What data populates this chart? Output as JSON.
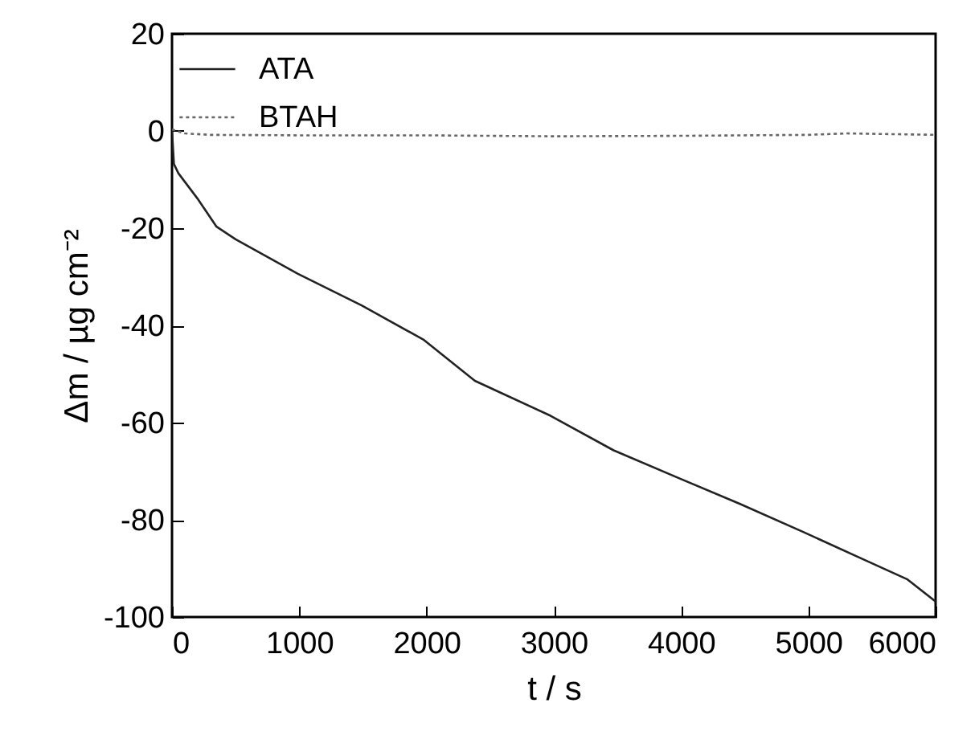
{
  "chart_data": {
    "type": "line",
    "xlabel": "t / s",
    "ylabel": "Δm / µg cm⁻²",
    "xlim": [
      0,
      6000
    ],
    "ylim": [
      -100,
      20
    ],
    "xticks": [
      0,
      1000,
      2000,
      3000,
      4000,
      5000,
      6000
    ],
    "yticks": [
      -100,
      -80,
      -60,
      -40,
      -20,
      0,
      20
    ],
    "grid": false,
    "legend": "top left",
    "marker": "none",
    "series": [
      {
        "name": "ATA",
        "color": "#222222",
        "line_style": "solid",
        "x": [
          0,
          15,
          50,
          200,
          350,
          500,
          990,
          1490,
          1980,
          2380,
          2975,
          3470,
          3990,
          4460,
          4960,
          5455,
          5775,
          6000
        ],
        "values": [
          0,
          -6.8,
          -8.7,
          -13.9,
          -19.7,
          -22.3,
          -29.4,
          -35.9,
          -43,
          -51.4,
          -58.6,
          -65.7,
          -71.5,
          -76.7,
          -82.5,
          -88.4,
          -92.2,
          -96.8
        ]
      },
      {
        "name": "BTAH",
        "color": "#666666",
        "line_style": "dotted",
        "x": [
          0,
          100,
          300,
          1000,
          2000,
          3000,
          4000,
          5000,
          5300,
          6000
        ],
        "values": [
          0.3,
          -0.5,
          -0.8,
          -0.9,
          -0.9,
          -1.1,
          -1.0,
          -0.8,
          -0.5,
          -0.8
        ]
      }
    ]
  }
}
